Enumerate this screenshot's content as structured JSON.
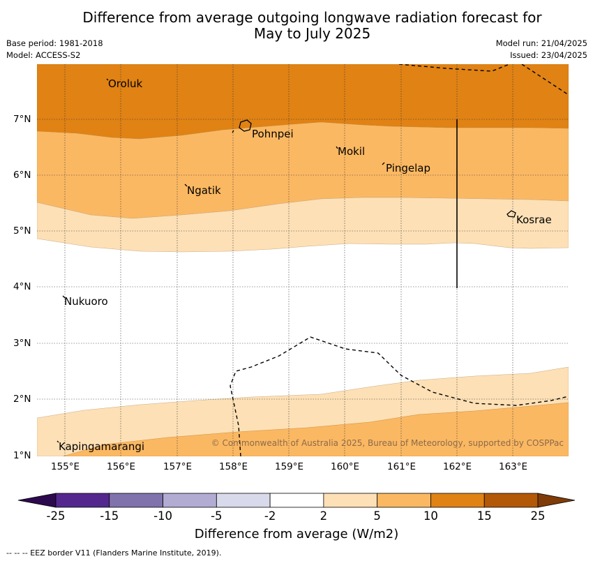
{
  "title_line1": "Difference from average outgoing longwave radiation forecast for",
  "title_line2": "May to July 2025",
  "base_period": "Base period: 1981-2018",
  "model": "Model: ACCESS-S2",
  "model_run": "Model run: 21/04/2025",
  "issued": "Issued: 23/04/2025",
  "copyright": "© Commonwealth of Australia 2025, Bureau of Meteorology, supported by COSPPac",
  "colorbar_title": "Difference from average (W/m2)",
  "eez_note": "-- -- -- EEZ border V11 (Flanders Marine Institute, 2019).",
  "lon_ticks": [
    "155°E",
    "156°E",
    "157°E",
    "158°E",
    "159°E",
    "160°E",
    "161°E",
    "162°E",
    "163°E"
  ],
  "lat_ticks": [
    "7°N",
    "6°N",
    "5°N",
    "4°N",
    "3°N",
    "2°N",
    "1°N"
  ],
  "places": {
    "oroluk": "Oroluk",
    "pohnpei": "Pohnpei",
    "mokil": "Mokil",
    "pingelap": "Pingelap",
    "ngatik": "Ngatik",
    "kosrae": "Kosrae",
    "nukuoro": "Nukuoro",
    "kapingamarangi": "Kapingamarangi"
  },
  "colorbar_labels": [
    "-25",
    "-15",
    "-10",
    "-5",
    "-2",
    "2",
    "5",
    "10",
    "15",
    "25"
  ],
  "colorbar_colors": [
    "#2d0a4e",
    "#54278f",
    "#8073ac",
    "#b2abd2",
    "#d8daeb",
    "#ffffff",
    "#fde0b5",
    "#fbb862",
    "#e08214",
    "#b35806",
    "#7f3b08"
  ],
  "map_colors": {
    "band_10_15": "#e08214",
    "band_5_10": "#fbb862",
    "band_2_5": "#fde0b5",
    "band_neutral": "#ffffff"
  }
}
